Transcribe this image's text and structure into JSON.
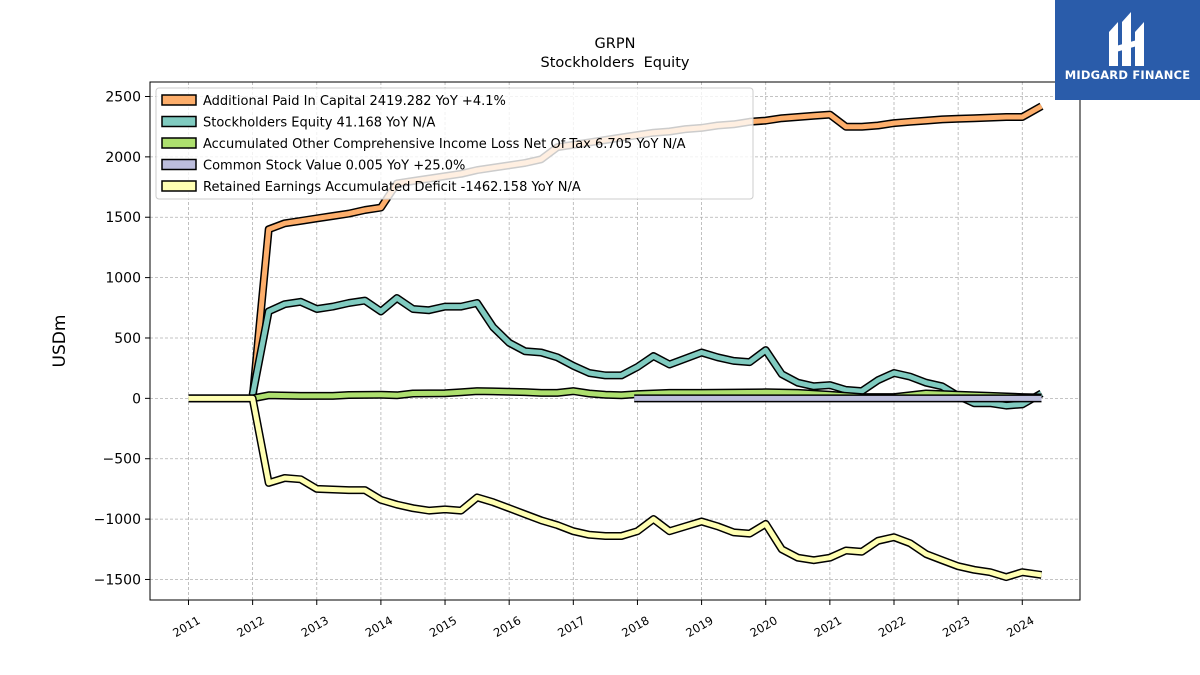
{
  "logo": {
    "text": "MIDGARD FINANCE"
  },
  "colors": {
    "apic": "#fdae6b",
    "equity": "#80cbc0",
    "aoci": "#addf6e",
    "common": "#bcbddc",
    "retained": "#ffffb2"
  },
  "chart_data": {
    "type": "line",
    "title": "GRPN",
    "subtitle": "Stockholders  Equity",
    "xlabel": "",
    "ylabel": "USDm",
    "xlim": [
      2010.4,
      2024.9
    ],
    "ylim": [
      -1670,
      2620
    ],
    "yticks": [
      2500,
      2000,
      1500,
      1000,
      500,
      0,
      -500,
      -1000,
      -1500
    ],
    "ytick_labels": [
      "2500",
      "2000",
      "1500",
      "1000",
      "500",
      "0",
      "−500",
      "−1000",
      "−1500"
    ],
    "xticks": [
      2011,
      2012,
      2013,
      2014,
      2015,
      2016,
      2017,
      2018,
      2019,
      2020,
      2021,
      2022,
      2023,
      2024
    ],
    "xtick_labels": [
      "2011",
      "2012",
      "2013",
      "2014",
      "2015",
      "2016",
      "2017",
      "2018",
      "2019",
      "2020",
      "2021",
      "2022",
      "2023",
      "2024"
    ],
    "grid": true,
    "legend_position": "upper-left",
    "series": [
      {
        "name": "Additional Paid In Capital  2419.282 YoY +4.1%",
        "color_key": "apic",
        "points": [
          [
            2012.0,
            0
          ],
          [
            2012.25,
            1400
          ],
          [
            2012.5,
            1450
          ],
          [
            2012.75,
            1470
          ],
          [
            2013.0,
            1490
          ],
          [
            2013.25,
            1510
          ],
          [
            2013.5,
            1530
          ],
          [
            2013.75,
            1560
          ],
          [
            2014.0,
            1580
          ],
          [
            2014.25,
            1780
          ],
          [
            2014.5,
            1800
          ],
          [
            2014.75,
            1820
          ],
          [
            2015.0,
            1840
          ],
          [
            2015.25,
            1860
          ],
          [
            2015.5,
            1890
          ],
          [
            2015.75,
            1910
          ],
          [
            2016.0,
            1930
          ],
          [
            2016.25,
            1950
          ],
          [
            2016.5,
            1980
          ],
          [
            2016.75,
            2080
          ],
          [
            2017.0,
            2100
          ],
          [
            2017.25,
            2120
          ],
          [
            2017.5,
            2140
          ],
          [
            2017.75,
            2160
          ],
          [
            2018.0,
            2180
          ],
          [
            2018.25,
            2200
          ],
          [
            2018.5,
            2210
          ],
          [
            2018.75,
            2230
          ],
          [
            2019.0,
            2240
          ],
          [
            2019.25,
            2260
          ],
          [
            2019.5,
            2270
          ],
          [
            2019.75,
            2290
          ],
          [
            2020.0,
            2300
          ],
          [
            2020.25,
            2320
          ],
          [
            2020.5,
            2330
          ],
          [
            2020.75,
            2340
          ],
          [
            2021.0,
            2350
          ],
          [
            2021.25,
            2250
          ],
          [
            2021.5,
            2250
          ],
          [
            2021.75,
            2260
          ],
          [
            2022.0,
            2280
          ],
          [
            2022.25,
            2290
          ],
          [
            2022.5,
            2300
          ],
          [
            2022.75,
            2310
          ],
          [
            2023.0,
            2315
          ],
          [
            2023.25,
            2320
          ],
          [
            2023.5,
            2325
          ],
          [
            2023.75,
            2330
          ],
          [
            2024.0,
            2330
          ],
          [
            2024.3,
            2419.282
          ]
        ]
      },
      {
        "name": "Stockholders Equity  41.168 YoY N/A",
        "color_key": "equity",
        "points": [
          [
            2012.0,
            30
          ],
          [
            2012.25,
            720
          ],
          [
            2012.5,
            780
          ],
          [
            2012.75,
            800
          ],
          [
            2013.0,
            740
          ],
          [
            2013.25,
            760
          ],
          [
            2013.5,
            790
          ],
          [
            2013.75,
            810
          ],
          [
            2014.0,
            720
          ],
          [
            2014.25,
            830
          ],
          [
            2014.5,
            740
          ],
          [
            2014.75,
            730
          ],
          [
            2015.0,
            760
          ],
          [
            2015.25,
            760
          ],
          [
            2015.5,
            790
          ],
          [
            2015.75,
            590
          ],
          [
            2016.0,
            460
          ],
          [
            2016.25,
            390
          ],
          [
            2016.5,
            380
          ],
          [
            2016.75,
            340
          ],
          [
            2017.0,
            270
          ],
          [
            2017.25,
            210
          ],
          [
            2017.5,
            190
          ],
          [
            2017.75,
            190
          ],
          [
            2018.0,
            260
          ],
          [
            2018.25,
            350
          ],
          [
            2018.5,
            280
          ],
          [
            2018.75,
            330
          ],
          [
            2019.0,
            380
          ],
          [
            2019.25,
            340
          ],
          [
            2019.5,
            310
          ],
          [
            2019.75,
            300
          ],
          [
            2020.0,
            400
          ],
          [
            2020.25,
            200
          ],
          [
            2020.5,
            130
          ],
          [
            2020.75,
            100
          ],
          [
            2021.0,
            110
          ],
          [
            2021.25,
            70
          ],
          [
            2021.5,
            60
          ],
          [
            2021.75,
            150
          ],
          [
            2022.0,
            210
          ],
          [
            2022.25,
            180
          ],
          [
            2022.5,
            130
          ],
          [
            2022.75,
            100
          ],
          [
            2023.0,
            20
          ],
          [
            2023.25,
            -40
          ],
          [
            2023.5,
            -40
          ],
          [
            2023.75,
            -60
          ],
          [
            2024.0,
            -50
          ],
          [
            2024.3,
            41.168
          ]
        ]
      },
      {
        "name": "Accumulated Other Comprehensive Income Loss Net Of Tax  6.705 YoY N/A",
        "color_key": "aoci",
        "points": [
          [
            2011.0,
            0
          ],
          [
            2011.5,
            0
          ],
          [
            2012.0,
            0
          ],
          [
            2012.25,
            25
          ],
          [
            2012.75,
            20
          ],
          [
            2013.25,
            20
          ],
          [
            2013.5,
            28
          ],
          [
            2014.0,
            30
          ],
          [
            2014.25,
            25
          ],
          [
            2014.5,
            40
          ],
          [
            2015.0,
            42
          ],
          [
            2015.25,
            50
          ],
          [
            2015.5,
            60
          ],
          [
            2015.75,
            58
          ],
          [
            2016.0,
            55
          ],
          [
            2016.25,
            52
          ],
          [
            2016.5,
            45
          ],
          [
            2016.75,
            45
          ],
          [
            2017.0,
            60
          ],
          [
            2017.25,
            40
          ],
          [
            2017.5,
            30
          ],
          [
            2017.75,
            25
          ],
          [
            2018.0,
            35
          ],
          [
            2018.5,
            45
          ],
          [
            2019.0,
            45
          ],
          [
            2019.5,
            48
          ],
          [
            2020.0,
            50
          ],
          [
            2020.5,
            45
          ],
          [
            2021.0,
            30
          ],
          [
            2021.5,
            10
          ],
          [
            2022.0,
            10
          ],
          [
            2022.5,
            40
          ],
          [
            2023.0,
            30
          ],
          [
            2023.5,
            20
          ],
          [
            2024.0,
            10
          ],
          [
            2024.3,
            6.705
          ]
        ]
      },
      {
        "name": "Common Stock Value  0.005 YoY +25.0%",
        "color_key": "common",
        "points": [
          [
            2017.95,
            0
          ],
          [
            2024.3,
            0.005
          ]
        ]
      },
      {
        "name": "Retained Earnings Accumulated Deficit  -1462.158 YoY N/A",
        "color_key": "retained",
        "points": [
          [
            2011.0,
            0
          ],
          [
            2012.0,
            0
          ],
          [
            2012.25,
            -700
          ],
          [
            2012.5,
            -660
          ],
          [
            2012.75,
            -670
          ],
          [
            2013.0,
            -750
          ],
          [
            2013.5,
            -760
          ],
          [
            2013.75,
            -760
          ],
          [
            2014.0,
            -840
          ],
          [
            2014.25,
            -880
          ],
          [
            2014.5,
            -910
          ],
          [
            2014.75,
            -930
          ],
          [
            2015.0,
            -920
          ],
          [
            2015.25,
            -930
          ],
          [
            2015.5,
            -820
          ],
          [
            2015.75,
            -860
          ],
          [
            2016.0,
            -910
          ],
          [
            2016.25,
            -960
          ],
          [
            2016.5,
            -1010
          ],
          [
            2016.75,
            -1050
          ],
          [
            2017.0,
            -1100
          ],
          [
            2017.25,
            -1130
          ],
          [
            2017.5,
            -1140
          ],
          [
            2017.75,
            -1140
          ],
          [
            2018.0,
            -1100
          ],
          [
            2018.25,
            -1000
          ],
          [
            2018.5,
            -1100
          ],
          [
            2018.75,
            -1060
          ],
          [
            2019.0,
            -1020
          ],
          [
            2019.25,
            -1060
          ],
          [
            2019.5,
            -1110
          ],
          [
            2019.75,
            -1120
          ],
          [
            2020.0,
            -1040
          ],
          [
            2020.25,
            -1250
          ],
          [
            2020.5,
            -1320
          ],
          [
            2020.75,
            -1340
          ],
          [
            2021.0,
            -1320
          ],
          [
            2021.25,
            -1260
          ],
          [
            2021.5,
            -1270
          ],
          [
            2021.75,
            -1180
          ],
          [
            2022.0,
            -1150
          ],
          [
            2022.25,
            -1200
          ],
          [
            2022.5,
            -1290
          ],
          [
            2022.75,
            -1340
          ],
          [
            2023.0,
            -1390
          ],
          [
            2023.25,
            -1420
          ],
          [
            2023.5,
            -1440
          ],
          [
            2023.75,
            -1480
          ],
          [
            2024.0,
            -1440
          ],
          [
            2024.3,
            -1462.158
          ]
        ]
      }
    ]
  }
}
